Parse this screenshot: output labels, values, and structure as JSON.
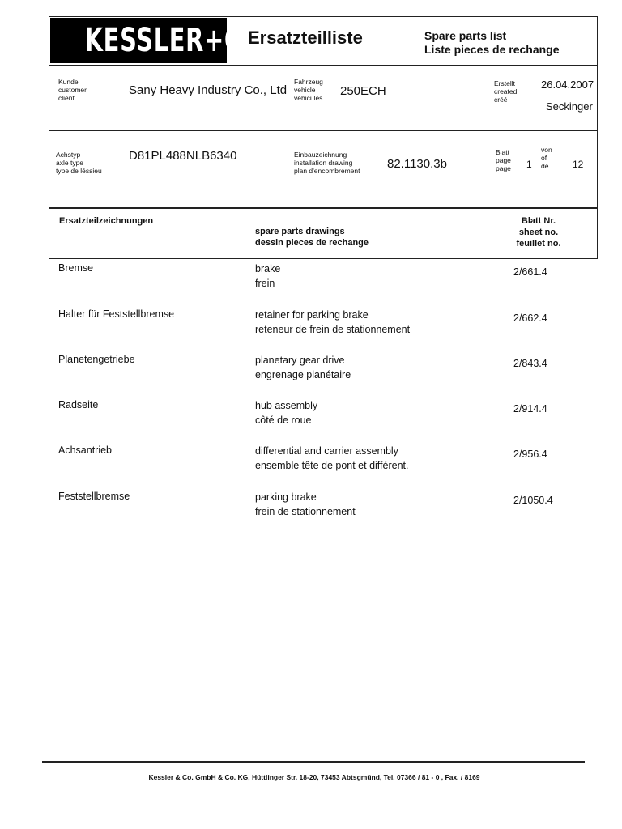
{
  "header": {
    "logo": "KESSLER+CO",
    "title": "Ersatzteilliste",
    "subtitle_en": "Spare parts list",
    "subtitle_fr": "Liste pieces de rechange"
  },
  "info": {
    "customer_labels": [
      "Kunde",
      "customer",
      "client"
    ],
    "customer": "Sany Heavy Industry Co., Ltd",
    "vehicle_labels": [
      "Fahrzeug",
      "vehicle",
      "véhicules"
    ],
    "vehicle": "250ECH",
    "created_labels": [
      "Erstellt",
      "created",
      "créé"
    ],
    "created_date": "26.04.2007",
    "created_by": "Seckinger",
    "axle_labels": [
      "Achstyp",
      "axle type",
      "type de léssieu"
    ],
    "axle_type": "D81PL488NLB6340",
    "drawing_labels": [
      "Einbauzeichnung",
      "installation drawing",
      "plan d'encombrement"
    ],
    "drawing": "82.1130.3b",
    "page_labels": [
      "Blatt",
      "page",
      "page"
    ],
    "page": "1",
    "of_labels": [
      "von",
      "of",
      "de"
    ],
    "total_pages": "12"
  },
  "table_header": {
    "de": "Ersatzteilzeichnungen",
    "en": "spare parts drawings",
    "fr": "dessin pieces de rechange",
    "sheet": [
      "Blatt Nr.",
      "sheet no.",
      "feuillet no."
    ]
  },
  "rows": [
    {
      "de": "Bremse",
      "en": "brake",
      "fr": "frein",
      "sheet": "2/661.4"
    },
    {
      "de": "Halter für Feststellbremse",
      "en": "retainer for parking brake",
      "fr": "reteneur de frein de stationnement",
      "sheet": "2/662.4"
    },
    {
      "de": "Planetengetriebe",
      "en": "planetary gear drive",
      "fr": "engrenage planétaire",
      "sheet": "2/843.4"
    },
    {
      "de": "Radseite",
      "en": "hub assembly",
      "fr": "côté de roue",
      "sheet": "2/914.4"
    },
    {
      "de": "Achsantrieb",
      "en": "differential and carrier assembly",
      "fr": "ensemble tête de pont et différent.",
      "sheet": "2/956.4"
    },
    {
      "de": "Feststellbremse",
      "en": "parking brake",
      "fr": "frein de stationnement",
      "sheet": "2/1050.4"
    }
  ],
  "footer": "Kessler & Co. GmbH & Co. KG, Hüttlinger Str. 18-20, 73453 Abtsgmünd, Tel. 07366 / 81 - 0 , Fax. / 8169"
}
